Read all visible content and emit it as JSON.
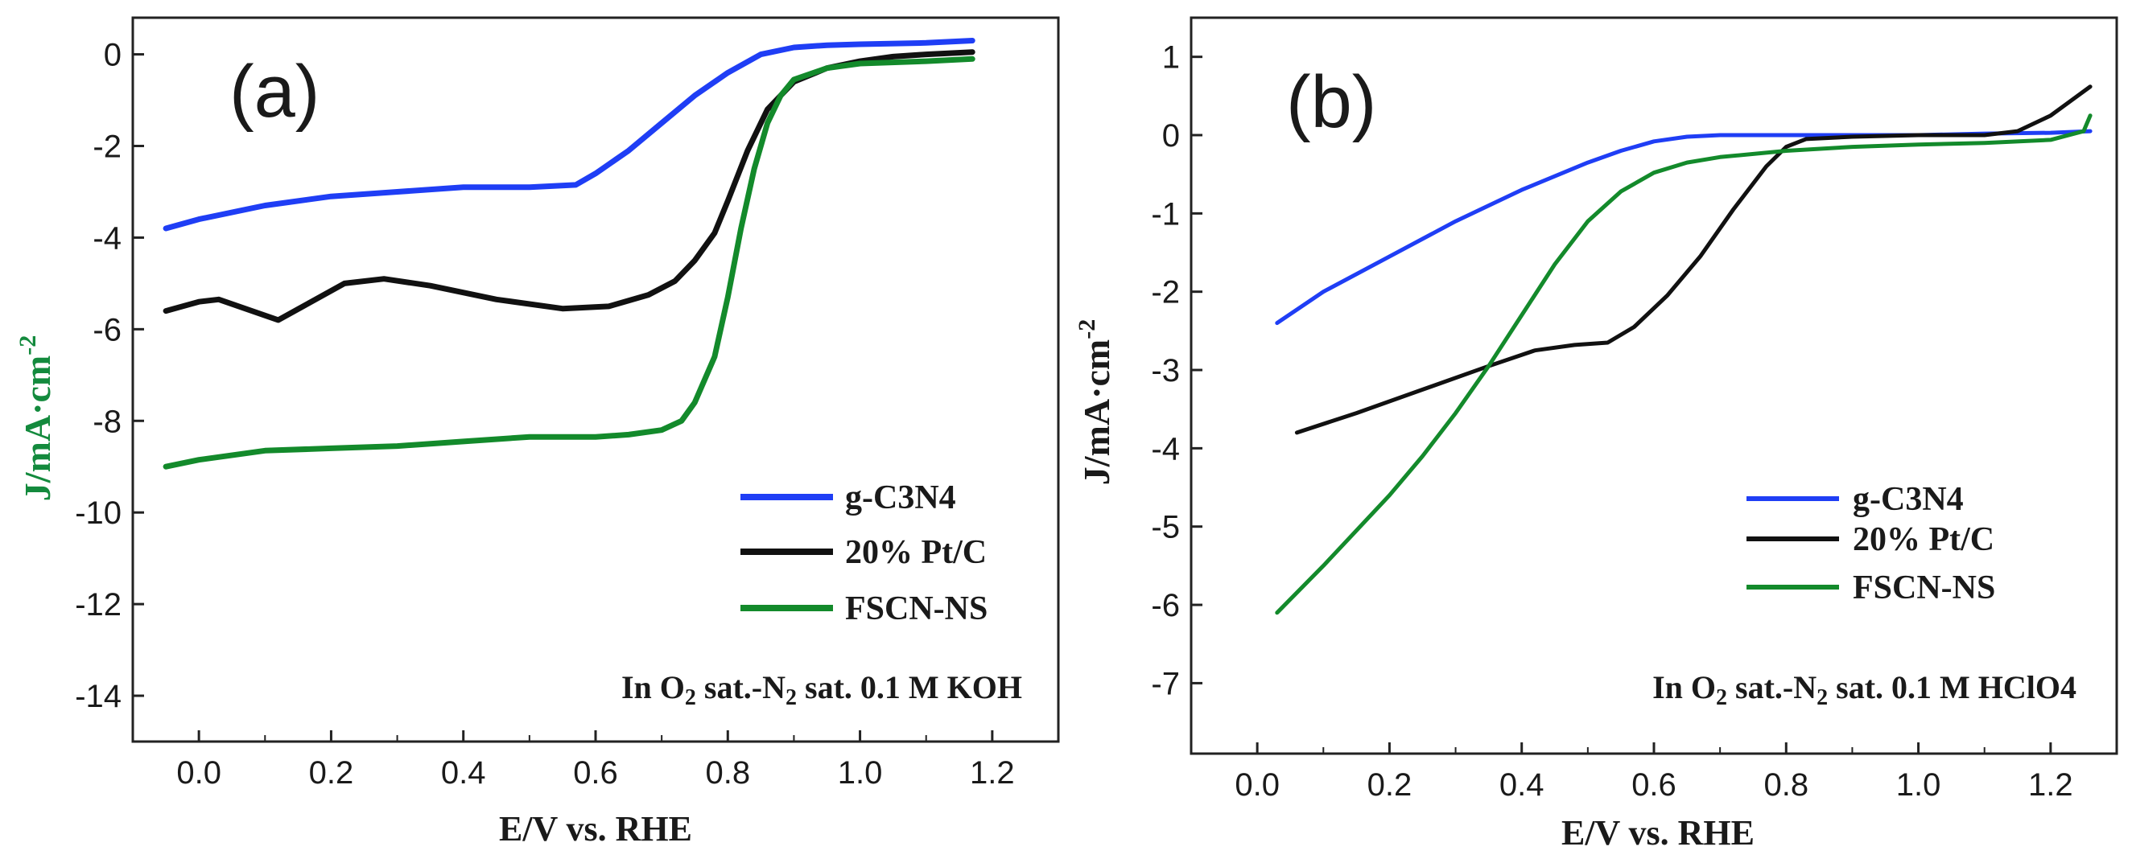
{
  "chart_data": [
    {
      "type": "line",
      "panel_label": "(a)",
      "xlabel": "E/V vs. RHE",
      "ylabel": "J/mA·cm",
      "ylabel_sup": "-2",
      "xlim": [
        -0.1,
        1.3
      ],
      "ylim": [
        -15,
        0.8
      ],
      "xticks": [
        "0.0",
        "0.2",
        "0.4",
        "0.6",
        "0.8",
        "1.0",
        "1.2"
      ],
      "yticks": [
        "0",
        "-2",
        "-4",
        "-6",
        "-8",
        "-10",
        "-12",
        "-14"
      ],
      "legend_position": "bottom-right",
      "annotation": {
        "prefix": "In O",
        "sub1": "2",
        "mid": " sat.-N",
        "sub2": "2",
        "suffix": " sat. 0.1 M KOH"
      },
      "series": [
        {
          "name": "g-C3N4",
          "color": "#1f3ef5",
          "x": [
            -0.05,
            0.0,
            0.1,
            0.2,
            0.3,
            0.4,
            0.5,
            0.57,
            0.6,
            0.65,
            0.7,
            0.75,
            0.8,
            0.85,
            0.9,
            0.95,
            1.0,
            1.1,
            1.17
          ],
          "y": [
            -3.8,
            -3.6,
            -3.3,
            -3.1,
            -3.0,
            -2.9,
            -2.9,
            -2.85,
            -2.6,
            -2.1,
            -1.5,
            -0.9,
            -0.4,
            0.0,
            0.15,
            0.2,
            0.22,
            0.25,
            0.3
          ]
        },
        {
          "name": "20% Pt/C",
          "color": "#111111",
          "x": [
            -0.05,
            0.0,
            0.03,
            0.07,
            0.12,
            0.17,
            0.22,
            0.28,
            0.35,
            0.45,
            0.55,
            0.62,
            0.68,
            0.72,
            0.75,
            0.78,
            0.8,
            0.83,
            0.86,
            0.9,
            0.95,
            1.0,
            1.05,
            1.1,
            1.17
          ],
          "y": [
            -5.6,
            -5.4,
            -5.35,
            -5.55,
            -5.8,
            -5.4,
            -5.0,
            -4.9,
            -5.05,
            -5.35,
            -5.55,
            -5.5,
            -5.25,
            -4.95,
            -4.5,
            -3.9,
            -3.2,
            -2.1,
            -1.2,
            -0.6,
            -0.3,
            -0.15,
            -0.05,
            0.0,
            0.05
          ]
        },
        {
          "name": "FSCN-NS",
          "color": "#138a2b",
          "x": [
            -0.05,
            0.0,
            0.1,
            0.2,
            0.3,
            0.4,
            0.5,
            0.6,
            0.65,
            0.7,
            0.73,
            0.75,
            0.78,
            0.8,
            0.82,
            0.84,
            0.86,
            0.88,
            0.9,
            0.95,
            1.0,
            1.1,
            1.17
          ],
          "y": [
            -9.0,
            -8.85,
            -8.65,
            -8.6,
            -8.55,
            -8.45,
            -8.35,
            -8.35,
            -8.3,
            -8.2,
            -8.0,
            -7.6,
            -6.6,
            -5.3,
            -3.8,
            -2.5,
            -1.5,
            -0.9,
            -0.55,
            -0.3,
            -0.2,
            -0.15,
            -0.1
          ]
        }
      ]
    },
    {
      "type": "line",
      "panel_label": "(b)",
      "xlabel": "E/V vs. RHE",
      "ylabel": "J/mA·cm",
      "ylabel_sup": "-2",
      "xlim": [
        -0.1,
        1.3
      ],
      "ylim": [
        -7.9,
        1.5
      ],
      "xticks": [
        "0.0",
        "0.2",
        "0.4",
        "0.6",
        "0.8",
        "1.0",
        "1.2"
      ],
      "yticks": [
        "1",
        "0",
        "-1",
        "-2",
        "-3",
        "-4",
        "-5",
        "-6",
        "-7"
      ],
      "legend_position": "bottom-right",
      "annotation": {
        "prefix": "In O",
        "sub1": "2",
        "mid": " sat.-N",
        "sub2": "2",
        "suffix": " sat. 0.1 M HClO4"
      },
      "series": [
        {
          "name": "g-C3N4",
          "color": "#1f3ef5",
          "x": [
            0.03,
            0.1,
            0.2,
            0.3,
            0.4,
            0.5,
            0.55,
            0.6,
            0.65,
            0.7,
            0.8,
            0.9,
            1.0,
            1.1,
            1.2,
            1.26
          ],
          "y": [
            -2.4,
            -2.0,
            -1.55,
            -1.1,
            -0.7,
            -0.35,
            -0.2,
            -0.08,
            -0.02,
            0.0,
            0.0,
            0.0,
            0.0,
            0.02,
            0.03,
            0.05
          ]
        },
        {
          "name": "20% Pt/C",
          "color": "#111111",
          "x": [
            0.06,
            0.15,
            0.25,
            0.35,
            0.42,
            0.48,
            0.53,
            0.57,
            0.62,
            0.67,
            0.72,
            0.77,
            0.8,
            0.83,
            0.9,
            1.0,
            1.1,
            1.15,
            1.2,
            1.26
          ],
          "y": [
            -3.8,
            -3.55,
            -3.25,
            -2.95,
            -2.75,
            -2.68,
            -2.65,
            -2.45,
            -2.05,
            -1.55,
            -0.95,
            -0.4,
            -0.15,
            -0.05,
            -0.02,
            0.0,
            0.0,
            0.05,
            0.25,
            0.62
          ]
        },
        {
          "name": "FSCN-NS",
          "color": "#138a2b",
          "x": [
            0.03,
            0.1,
            0.15,
            0.2,
            0.25,
            0.3,
            0.35,
            0.4,
            0.45,
            0.5,
            0.55,
            0.6,
            0.65,
            0.7,
            0.8,
            0.9,
            1.0,
            1.1,
            1.2,
            1.25,
            1.26
          ],
          "y": [
            -6.1,
            -5.5,
            -5.05,
            -4.6,
            -4.1,
            -3.55,
            -2.95,
            -2.3,
            -1.65,
            -1.1,
            -0.72,
            -0.48,
            -0.35,
            -0.28,
            -0.2,
            -0.15,
            -0.12,
            -0.1,
            -0.06,
            0.05,
            0.25
          ]
        }
      ]
    }
  ]
}
